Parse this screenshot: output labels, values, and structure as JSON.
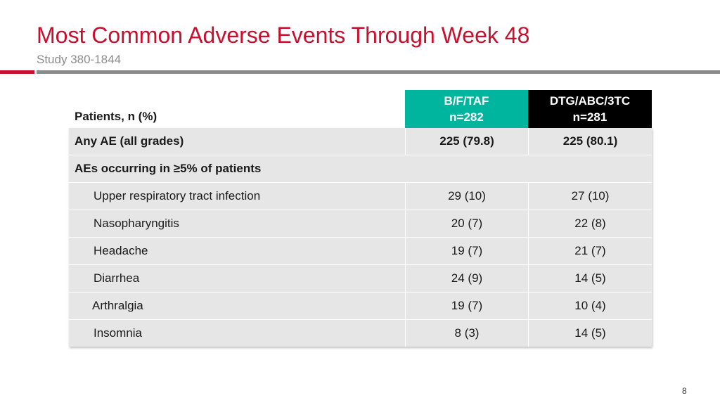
{
  "slide": {
    "title": "Most Common Adverse Events Through Week 48",
    "subtitle": "Study 380-1844",
    "page_number": "8"
  },
  "table": {
    "header": {
      "label": "Patients, n (%)",
      "col1_line1": "B/F/TAF",
      "col1_line2": "n=282",
      "col2_line1": "DTG/ABC/3TC",
      "col2_line2": "n=281"
    },
    "any_ae": {
      "label": "Any AE (all grades)",
      "col1": "225 (79.8)",
      "col2": "225 (80.1)"
    },
    "section_label": "AEs occurring in ≥5% of patients",
    "rows": [
      {
        "label": "Upper respiratory tract infection",
        "col1": "29 (10)",
        "col2": "27 (10)"
      },
      {
        "label": "Nasopharyngitis",
        "col1": "20 (7)",
        "col2": "22 (8)"
      },
      {
        "label": "Headache",
        "col1": "19 (7)",
        "col2": "21 (7)"
      },
      {
        "label": "Diarrhea",
        "col1": "24 (9)",
        "col2": "14 (5)"
      },
      {
        "label": "Arthralgia",
        "col1": "19 (7)",
        "col2": "10 (4)"
      },
      {
        "label": "Insomnia",
        "col1": "8 (3)",
        "col2": "14 (5)"
      }
    ]
  },
  "colors": {
    "title_red": "#c8102e",
    "bftaf_header": "#00b59d",
    "dtg_header": "#000000",
    "table_fill": "#e6e6e6"
  }
}
